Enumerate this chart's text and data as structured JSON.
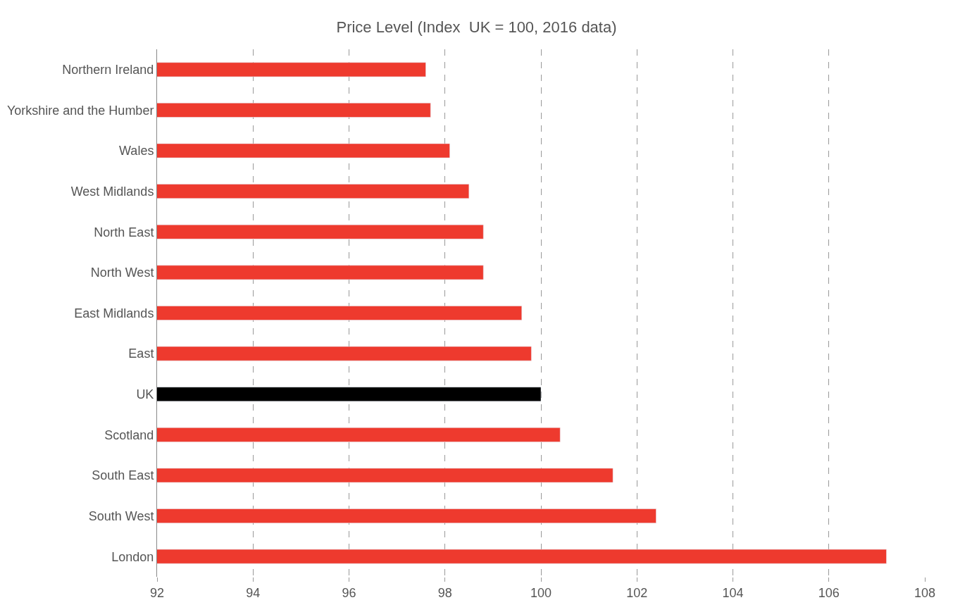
{
  "chart_data": {
    "type": "bar",
    "orientation": "horizontal",
    "title": "Price Level (Index  UK = 100, 2016 data)",
    "categories": [
      "Northern Ireland",
      "Yorkshire and the Humber",
      "Wales",
      "West Midlands",
      "North East",
      "North West",
      "East Midlands",
      "East",
      "UK",
      "Scotland",
      "South East",
      "South West",
      "London"
    ],
    "values": [
      97.6,
      97.7,
      98.1,
      98.5,
      98.8,
      98.8,
      99.6,
      99.8,
      100.0,
      100.4,
      101.5,
      102.4,
      107.2
    ],
    "colors": [
      "#ee3a2e",
      "#ee3a2e",
      "#ee3a2e",
      "#ee3a2e",
      "#ee3a2e",
      "#ee3a2e",
      "#ee3a2e",
      "#ee3a2e",
      "#000000",
      "#ee3a2e",
      "#ee3a2e",
      "#ee3a2e",
      "#ee3a2e"
    ],
    "xlim": [
      92,
      108
    ],
    "xticks": [
      92,
      94,
      96,
      98,
      100,
      102,
      104,
      106,
      108
    ],
    "grid": "x"
  }
}
